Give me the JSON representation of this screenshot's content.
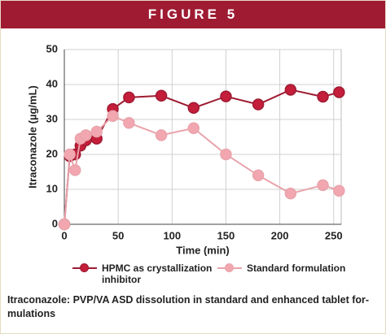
{
  "header": {
    "title": "FIGURE 5"
  },
  "chart_data": {
    "type": "line",
    "xlabel": "Time (min)",
    "ylabel": "Itraconazole (µg/mL)",
    "x": [
      0,
      5,
      10,
      15,
      20,
      30,
      45,
      60,
      90,
      120,
      150,
      180,
      210,
      240,
      255
    ],
    "series": [
      {
        "name": "HPMC as crystallization inhibitor",
        "color": "#c41e3a",
        "line_color": "#9e1b32",
        "values": [
          0,
          19.5,
          20,
          22.5,
          24,
          24.5,
          33,
          36.3,
          36.8,
          33.3,
          36.6,
          34.3,
          38.5,
          36.5,
          37.8
        ]
      },
      {
        "name": "Standard formulation",
        "color": "#f2a7b0",
        "line_color": "#e9a3ab",
        "values": [
          0,
          20,
          15.5,
          24.5,
          25.5,
          26.5,
          31,
          29,
          25.5,
          27.5,
          20,
          14,
          8.8,
          11.2,
          9.6
        ]
      }
    ],
    "xlim": [
      0,
      257
    ],
    "ylim": [
      0,
      50
    ],
    "xticks": [
      0,
      50,
      100,
      150,
      200,
      250
    ],
    "yticks": [
      0,
      10,
      20,
      30,
      40,
      50
    ],
    "grid": true
  },
  "caption": [
    "Itraconazole: PVP/VA ASD dissolution in standard and enhanced tablet for-",
    "mulations"
  ]
}
